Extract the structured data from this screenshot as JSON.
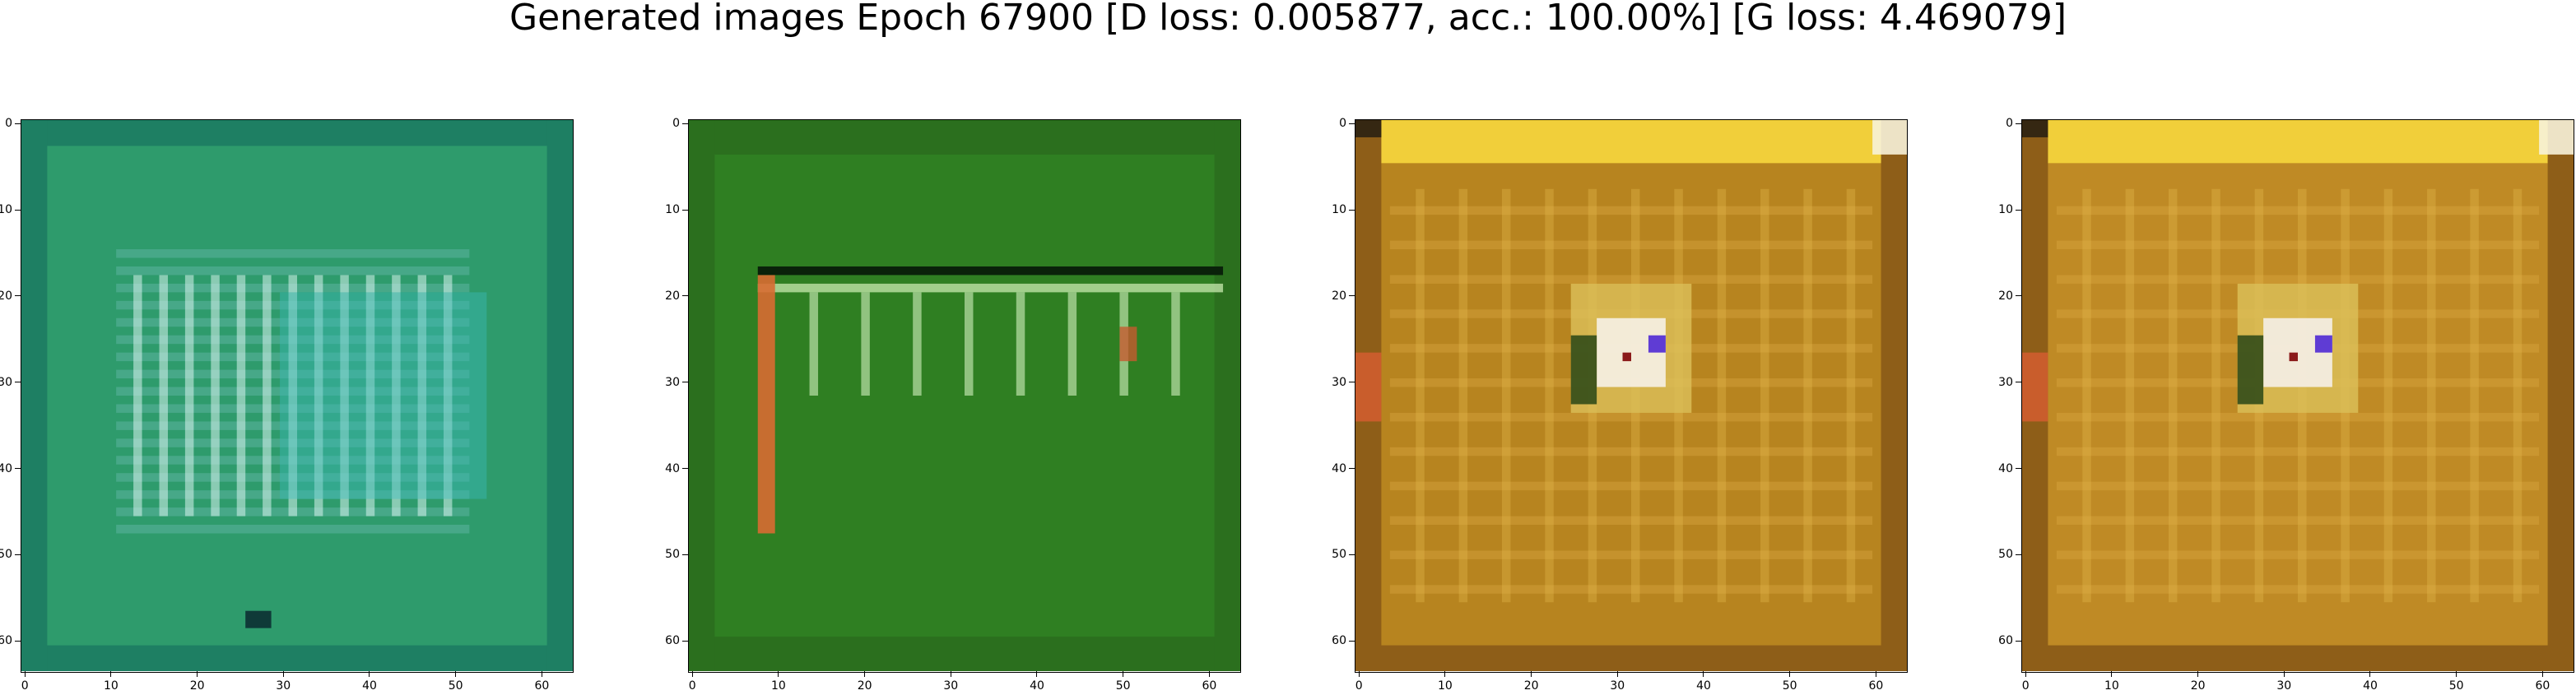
{
  "title": "Generated images Epoch 67900 [D loss: 0.005877, acc.: 100.00%] [G loss: 4.469079]",
  "chart_data": [
    {
      "type": "heatmap",
      "xlim": [
        -0.5,
        63.5
      ],
      "ylim": [
        63.5,
        -0.5
      ],
      "x_ticks": [
        0,
        10,
        20,
        30,
        40,
        50,
        60
      ],
      "y_ticks": [
        0,
        10,
        20,
        30,
        40,
        50,
        60
      ],
      "grid": false,
      "colors": {
        "base": "#2e9b6c",
        "accent": "#7fd3c8"
      }
    },
    {
      "type": "heatmap",
      "xlim": [
        -0.5,
        63.5
      ],
      "ylim": [
        63.5,
        -0.5
      ],
      "x_ticks": [
        0,
        10,
        20,
        30,
        40,
        50,
        60
      ],
      "y_ticks": [
        0,
        10,
        20,
        30,
        40,
        50,
        60
      ],
      "grid": false,
      "colors": {
        "base": "#2f7f22",
        "accent": "#d86b32"
      }
    },
    {
      "type": "heatmap",
      "xlim": [
        -0.5,
        63.5
      ],
      "ylim": [
        63.5,
        -0.5
      ],
      "x_ticks": [
        0,
        10,
        20,
        30,
        40,
        50,
        60
      ],
      "y_ticks": [
        0,
        10,
        20,
        30,
        40,
        50,
        60
      ],
      "grid": false,
      "colors": {
        "base": "#b7841f",
        "accent": "#f6f1e7"
      }
    },
    {
      "type": "heatmap",
      "xlim": [
        -0.5,
        63.5
      ],
      "ylim": [
        63.5,
        -0.5
      ],
      "x_ticks": [
        0,
        10,
        20,
        30,
        40,
        50,
        60
      ],
      "y_ticks": [
        0,
        10,
        20,
        30,
        40,
        50,
        60
      ],
      "grid": false,
      "colors": {
        "base": "#bf8a25",
        "accent": "#f5f0e8"
      }
    }
  ]
}
